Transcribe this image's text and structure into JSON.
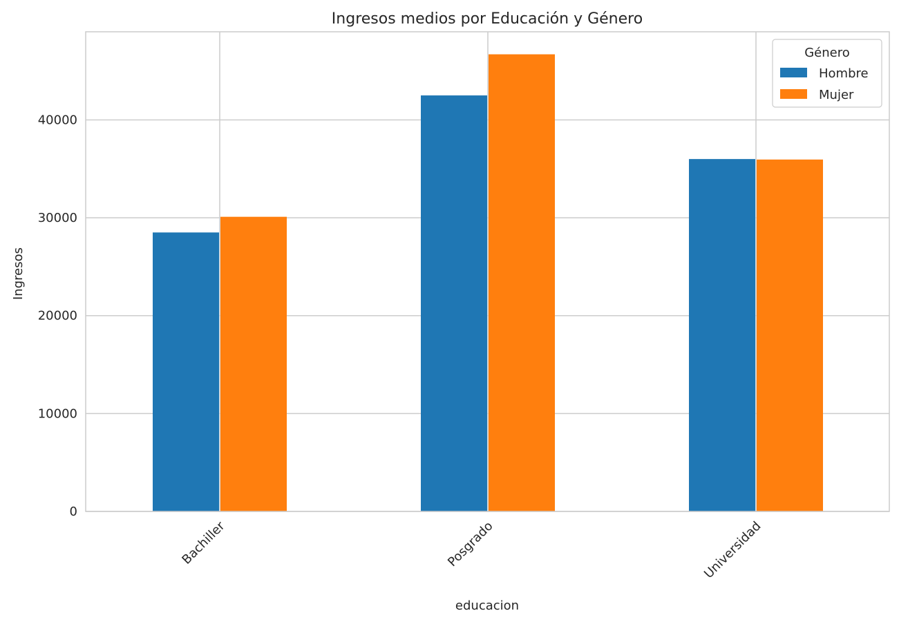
{
  "chart_data": {
    "type": "bar",
    "title": "Ingresos medios por Educación y Género",
    "xlabel": "educacion",
    "ylabel": "Ingresos",
    "categories": [
      "Bachiller",
      "Posgrado",
      "Universidad"
    ],
    "series": [
      {
        "name": "Hombre",
        "values": [
          28500,
          42500,
          36000
        ],
        "color": "#1f77b4"
      },
      {
        "name": "Mujer",
        "values": [
          30100,
          46700,
          35950
        ],
        "color": "#ff7f0e"
      }
    ],
    "ylim": [
      0,
      49000
    ],
    "yticks": [
      0,
      10000,
      20000,
      30000,
      40000
    ],
    "ytick_labels": [
      "0",
      "10000",
      "20000",
      "30000",
      "40000"
    ],
    "legend": {
      "title": "Género",
      "position": "top-right"
    },
    "grid": true
  }
}
